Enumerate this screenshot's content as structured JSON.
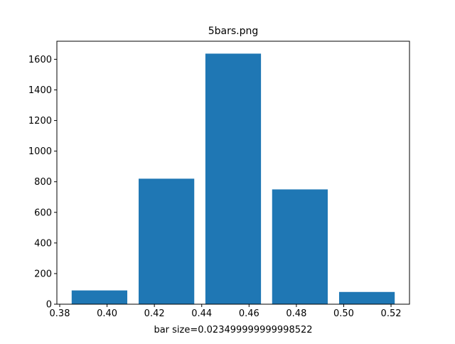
{
  "chart_data": {
    "type": "bar",
    "title": "5bars.png",
    "xlabel": "bar size=0.023499999999998522",
    "ylabel": "",
    "x": [
      0.3968,
      0.4251,
      0.4533,
      0.4815,
      0.5098
    ],
    "values": [
      90,
      820,
      1637,
      750,
      80
    ],
    "bar_width": 0.0235,
    "xlim": [
      0.3788,
      0.5278
    ],
    "ylim": [
      0,
      1718
    ],
    "xticks": [
      0.38,
      0.4,
      0.42,
      0.44,
      0.46,
      0.48,
      0.5,
      0.52
    ],
    "xtick_labels": [
      "0.38",
      "0.40",
      "0.42",
      "0.44",
      "0.46",
      "0.48",
      "0.50",
      "0.52"
    ],
    "yticks": [
      0,
      200,
      400,
      600,
      800,
      1000,
      1200,
      1400,
      1600
    ],
    "ytick_labels": [
      "0",
      "200",
      "400",
      "600",
      "800",
      "1000",
      "1200",
      "1400",
      "1600"
    ],
    "grid": false,
    "legend": "none",
    "bar_color": "#1f77b4"
  }
}
